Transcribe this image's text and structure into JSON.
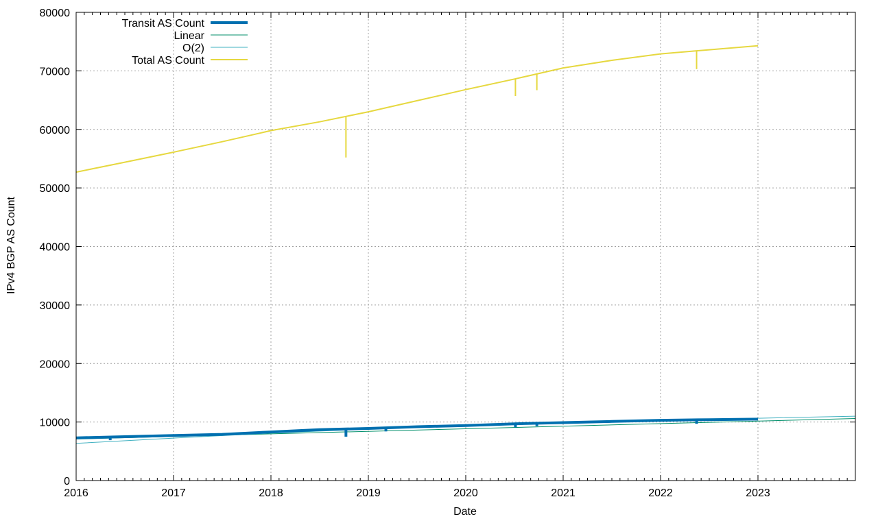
{
  "chart_data": {
    "type": "line",
    "xlabel": "Date",
    "ylabel": "IPv4 BGP AS Count",
    "xlim": [
      2016.0,
      2024.0
    ],
    "ylim": [
      0,
      80000
    ],
    "x_ticks": [
      {
        "label": "2016",
        "value": 2016
      },
      {
        "label": "2017",
        "value": 2017
      },
      {
        "label": "2018",
        "value": 2018
      },
      {
        "label": "2019",
        "value": 2019
      },
      {
        "label": "2020",
        "value": 2020
      },
      {
        "label": "2021",
        "value": 2021
      },
      {
        "label": "2022",
        "value": 2022
      },
      {
        "label": "2023",
        "value": 2023
      }
    ],
    "y_ticks": [
      {
        "label": "0",
        "value": 0
      },
      {
        "label": "10000",
        "value": 10000
      },
      {
        "label": "20000",
        "value": 20000
      },
      {
        "label": "30000",
        "value": 30000
      },
      {
        "label": "40000",
        "value": 40000
      },
      {
        "label": "50000",
        "value": 50000
      },
      {
        "label": "60000",
        "value": 60000
      },
      {
        "label": "70000",
        "value": 70000
      },
      {
        "label": "80000",
        "value": 80000
      }
    ],
    "grid": true,
    "legend": "top-left",
    "series": [
      {
        "name": "Transit AS Count",
        "color": "#0070b0",
        "style": "thick",
        "x": [
          2016.0,
          2016.5,
          2017.0,
          2017.5,
          2018.0,
          2018.5,
          2019.0,
          2019.5,
          2020.0,
          2020.5,
          2021.0,
          2021.5,
          2022.0,
          2022.5,
          2023.0
        ],
        "y": [
          7300,
          7500,
          7700,
          7900,
          8300,
          8700,
          8900,
          9200,
          9400,
          9700,
          9900,
          10100,
          10300,
          10400,
          10500
        ],
        "spikes": [
          {
            "x": 2016.35,
            "y": 6900
          },
          {
            "x": 2018.77,
            "y": 7500
          },
          {
            "x": 2019.18,
            "y": 8400
          },
          {
            "x": 2020.51,
            "y": 9100
          },
          {
            "x": 2020.73,
            "y": 9300
          },
          {
            "x": 2022.37,
            "y": 9700
          }
        ]
      },
      {
        "name": "Linear",
        "color": "#008f6a",
        "style": "thin",
        "x": [
          2016.0,
          2024.0
        ],
        "y": [
          7100,
          10600
        ]
      },
      {
        "name": "O(2)",
        "color": "#3fb0c0",
        "style": "thin",
        "x": [
          2016.0,
          2017.0,
          2018.0,
          2019.0,
          2020.0,
          2021.0,
          2022.0,
          2023.0,
          2024.0
        ],
        "y": [
          6350,
          7250,
          8100,
          8800,
          9400,
          9900,
          10300,
          10650,
          11000
        ]
      },
      {
        "name": "Total AS Count",
        "color": "#e6d840",
        "style": "medium",
        "x": [
          2016.0,
          2016.5,
          2017.0,
          2017.5,
          2018.0,
          2018.5,
          2019.0,
          2019.5,
          2020.0,
          2020.5,
          2021.0,
          2021.5,
          2022.0,
          2022.5,
          2023.0
        ],
        "y": [
          52700,
          54400,
          56100,
          57900,
          59800,
          61300,
          63000,
          64900,
          66800,
          68600,
          70500,
          71800,
          72900,
          73600,
          74300
        ],
        "spikes": [
          {
            "x": 2018.77,
            "y": 55200
          },
          {
            "x": 2020.51,
            "y": 65700
          },
          {
            "x": 2020.73,
            "y": 66700
          },
          {
            "x": 2022.37,
            "y": 70300
          }
        ]
      }
    ]
  }
}
